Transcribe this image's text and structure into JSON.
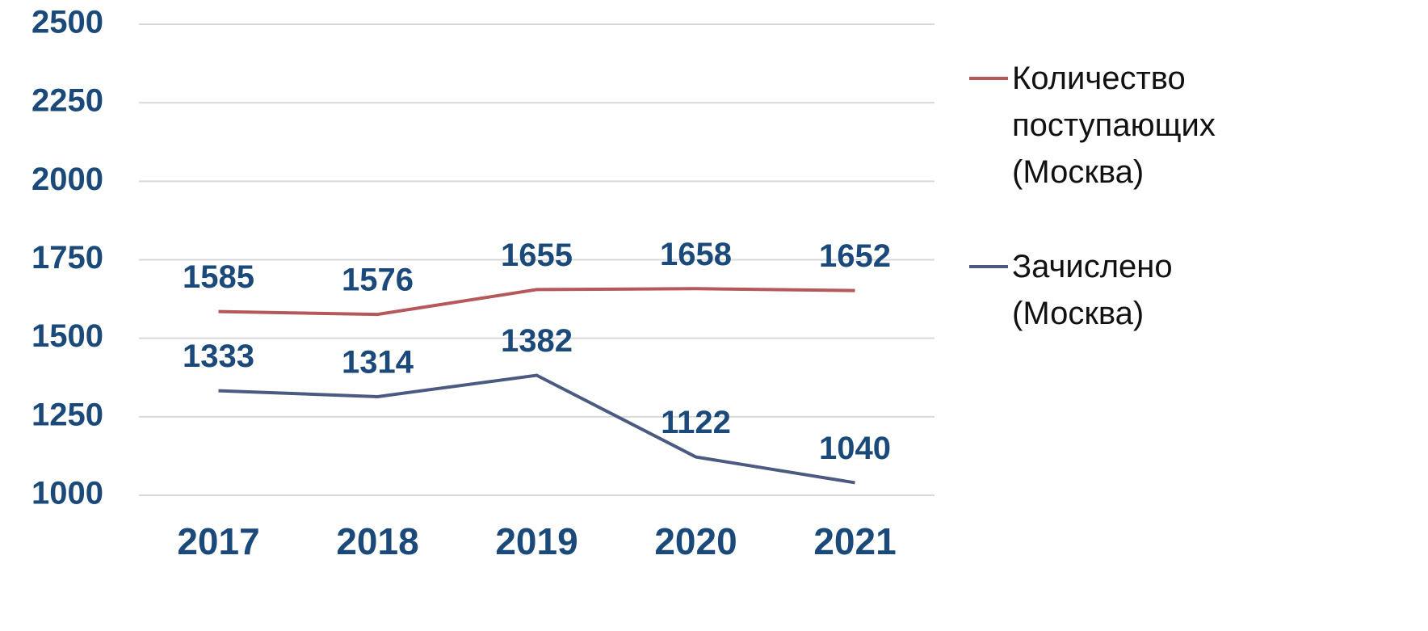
{
  "chart_data": {
    "type": "line",
    "categories": [
      "2017",
      "2018",
      "2019",
      "2020",
      "2021"
    ],
    "series": [
      {
        "name": "Количество поступающих (Москва)",
        "color": "#b5585a",
        "values": [
          1585,
          1576,
          1655,
          1658,
          1652
        ]
      },
      {
        "name": "Зачислено (Москва)",
        "color": "#4a5a80",
        "values": [
          1333,
          1314,
          1382,
          1122,
          1040
        ]
      }
    ],
    "ylim": [
      1000,
      2500
    ],
    "yticks": [
      1000,
      1250,
      1500,
      1750,
      2000,
      2250,
      2500
    ],
    "grid": true
  }
}
